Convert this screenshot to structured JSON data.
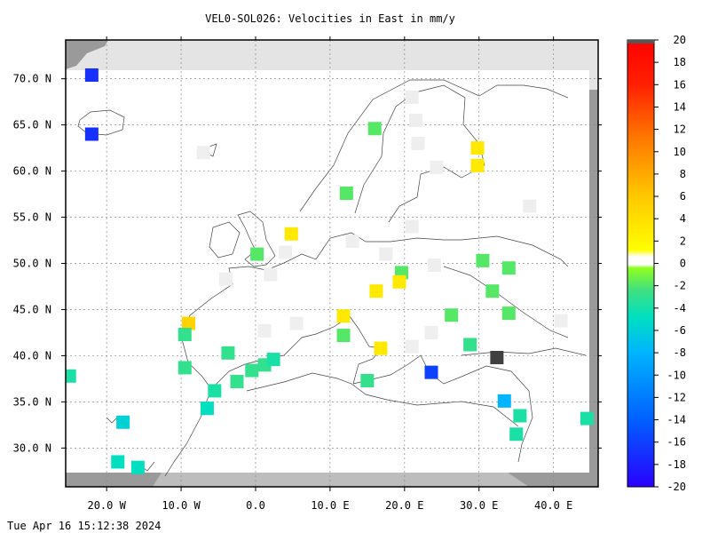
{
  "chart_data": {
    "type": "heatmap",
    "title": "VEL0-SOL026: Velocities in East in mm/y",
    "timestamp": "Tue Apr 16 15:12:38 2024",
    "x_range": [
      -25.5,
      46.0
    ],
    "y_range": [
      25.8,
      74.2
    ],
    "x_ticks": [
      {
        "value": -20,
        "label": "20.0 W"
      },
      {
        "value": -10,
        "label": "10.0 W"
      },
      {
        "value": 0,
        "label": "0.0"
      },
      {
        "value": 10,
        "label": "10.0 E"
      },
      {
        "value": 20,
        "label": "20.0 E"
      },
      {
        "value": 30,
        "label": "30.0 E"
      },
      {
        "value": 40,
        "label": "40.0 E"
      }
    ],
    "y_ticks": [
      {
        "value": 30,
        "label": "30.0 N"
      },
      {
        "value": 35,
        "label": "35.0 N"
      },
      {
        "value": 40,
        "label": "40.0 N"
      },
      {
        "value": 45,
        "label": "45.0 N"
      },
      {
        "value": 50,
        "label": "50.0 N"
      },
      {
        "value": 55,
        "label": "55.0 N"
      },
      {
        "value": 60,
        "label": "60.0 N"
      },
      {
        "value": 65,
        "label": "65.0 N"
      },
      {
        "value": 70,
        "label": "70.0 N"
      }
    ],
    "grid": true,
    "colorbar": {
      "range": [
        -20,
        20
      ],
      "ticks": [
        -20,
        -18,
        -16,
        -14,
        -12,
        -10,
        -8,
        -6,
        -4,
        -2,
        0,
        2,
        4,
        6,
        8,
        10,
        12,
        14,
        16,
        18,
        20
      ],
      "colors": [
        "#2a00ff",
        "#0060ff",
        "#00b4ff",
        "#00e0c0",
        "#40e080",
        "#90ff20",
        "#ffffff",
        "#ffff00",
        "#ffc800",
        "#ff7800",
        "#ff2000",
        "#ff0000"
      ]
    },
    "cells": [
      {
        "lon": -22,
        "lat": 70.4,
        "value": -17
      },
      {
        "lon": -22,
        "lat": 64.0,
        "value": -17
      },
      {
        "lon": -25,
        "lat": 37.8,
        "value": -4
      },
      {
        "lon": -17.8,
        "lat": 32.8,
        "value": -6
      },
      {
        "lon": -18.5,
        "lat": 28.5,
        "value": -5
      },
      {
        "lon": -15.8,
        "lat": 27.9,
        "value": -5
      },
      {
        "lon": -9.0,
        "lat": 43.5,
        "value": 5
      },
      {
        "lon": -9.5,
        "lat": 42.3,
        "value": -3
      },
      {
        "lon": -9.5,
        "lat": 38.7,
        "value": -3
      },
      {
        "lon": -6.5,
        "lat": 34.3,
        "value": -5
      },
      {
        "lon": -5.5,
        "lat": 36.2,
        "value": -4
      },
      {
        "lon": -3.7,
        "lat": 40.3,
        "value": -3
      },
      {
        "lon": -2.5,
        "lat": 37.2,
        "value": -3
      },
      {
        "lon": -0.5,
        "lat": 38.4,
        "value": -3
      },
      {
        "lon": 1.2,
        "lat": 39.0,
        "value": -3
      },
      {
        "lon": 2.4,
        "lat": 39.6,
        "value": -4
      },
      {
        "lon": -7.0,
        "lat": 62.0,
        "value": 0.5
      },
      {
        "lon": 0.2,
        "lat": 51.0,
        "value": -2
      },
      {
        "lon": 4.8,
        "lat": 53.2,
        "value": 3
      },
      {
        "lon": 12.2,
        "lat": 57.6,
        "value": -2
      },
      {
        "lon": 16.0,
        "lat": 64.6,
        "value": -2
      },
      {
        "lon": 29.8,
        "lat": 62.5,
        "value": 3
      },
      {
        "lon": 29.8,
        "lat": 60.6,
        "value": 3
      },
      {
        "lon": 19.6,
        "lat": 49.0,
        "value": -2
      },
      {
        "lon": 16.2,
        "lat": 47.0,
        "value": 3
      },
      {
        "lon": 19.3,
        "lat": 48.0,
        "value": 3
      },
      {
        "lon": 30.5,
        "lat": 50.3,
        "value": -2
      },
      {
        "lon": 34.0,
        "lat": 49.5,
        "value": -2
      },
      {
        "lon": 31.8,
        "lat": 47.0,
        "value": -2
      },
      {
        "lon": 26.3,
        "lat": 44.4,
        "value": -2
      },
      {
        "lon": 34.0,
        "lat": 44.6,
        "value": -2
      },
      {
        "lon": 11.8,
        "lat": 44.3,
        "value": 3
      },
      {
        "lon": 11.8,
        "lat": 42.2,
        "value": -2
      },
      {
        "lon": 16.8,
        "lat": 40.8,
        "value": 3
      },
      {
        "lon": 15.0,
        "lat": 37.3,
        "value": -3
      },
      {
        "lon": 28.8,
        "lat": 41.2,
        "value": -3
      },
      {
        "lon": 23.6,
        "lat": 38.2,
        "value": -16
      },
      {
        "lon": 32.4,
        "lat": 39.8,
        "value": -22
      },
      {
        "lon": 33.4,
        "lat": 35.1,
        "value": -8
      },
      {
        "lon": 35.0,
        "lat": 31.5,
        "value": -4
      },
      {
        "lon": 35.5,
        "lat": 33.5,
        "value": -4
      },
      {
        "lon": 44.5,
        "lat": 33.2,
        "value": -4
      },
      {
        "lon": 21.0,
        "lat": 68.0,
        "value": 0.3
      },
      {
        "lon": 21.5,
        "lat": 65.5,
        "value": 0.3
      },
      {
        "lon": 24.3,
        "lat": 60.4,
        "value": 0.4
      },
      {
        "lon": 21.0,
        "lat": 54.0,
        "value": 0.3
      },
      {
        "lon": 13.0,
        "lat": 52.4,
        "value": 0.4
      },
      {
        "lon": 4.0,
        "lat": 51.2,
        "value": 0.5
      },
      {
        "lon": 2.0,
        "lat": 48.8,
        "value": 0.4
      },
      {
        "lon": -4.0,
        "lat": 48.3,
        "value": 0.5
      },
      {
        "lon": 17.5,
        "lat": 51.0,
        "value": 0.3
      },
      {
        "lon": 24.0,
        "lat": 49.8,
        "value": 0.3
      },
      {
        "lon": 1.2,
        "lat": 42.7,
        "value": 0.4
      },
      {
        "lon": 5.5,
        "lat": 43.5,
        "value": 0.4
      },
      {
        "lon": 21.0,
        "lat": 41.0,
        "value": 0.4
      },
      {
        "lon": 23.6,
        "lat": 42.5,
        "value": 0.5
      },
      {
        "lon": 41.0,
        "lat": 43.8,
        "value": 0.4
      },
      {
        "lon": 36.8,
        "lat": 56.2,
        "value": 0.3
      },
      {
        "lon": 21.8,
        "lat": 63.0,
        "value": 0.3
      }
    ]
  }
}
